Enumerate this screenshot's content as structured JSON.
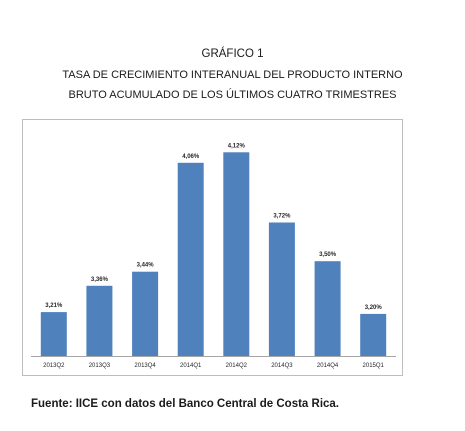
{
  "header": {
    "label": "GRÁFICO 1",
    "title_line1": "TASA DE CRECIMIENTO INTERANUAL DEL PRODUCTO INTERNO",
    "title_line2": "BRUTO ACUMULADO DE LOS ÚLTIMOS CUATRO TRIMESTRES"
  },
  "source": "Fuente: IICE con datos del Banco Central de Costa Rica.",
  "colors": {
    "bar": "#4f81bd",
    "axis": "#a6a6a6",
    "frame": "#bdbdbd"
  },
  "chart_data": {
    "type": "bar",
    "title": "TASA DE CRECIMIENTO INTERANUAL DEL PRODUCTO INTERNO BRUTO ACUMULADO DE LOS ÚLTIMOS CUATRO TRIMESTRES",
    "categories": [
      "2013Q2",
      "2013Q3",
      "2013Q4",
      "2014Q1",
      "2014Q2",
      "2014Q3",
      "2014Q4",
      "2015Q1"
    ],
    "values": [
      3.21,
      3.36,
      3.44,
      4.06,
      4.12,
      3.72,
      3.5,
      3.2
    ],
    "data_labels": [
      "3,21%",
      "3,36%",
      "3,44%",
      "4,06%",
      "4,12%",
      "3,72%",
      "3,50%",
      "3,20%"
    ],
    "xlabel": "",
    "ylabel": "",
    "ylim": [
      2.96,
      4.19
    ],
    "grid": false,
    "legend": "none"
  }
}
